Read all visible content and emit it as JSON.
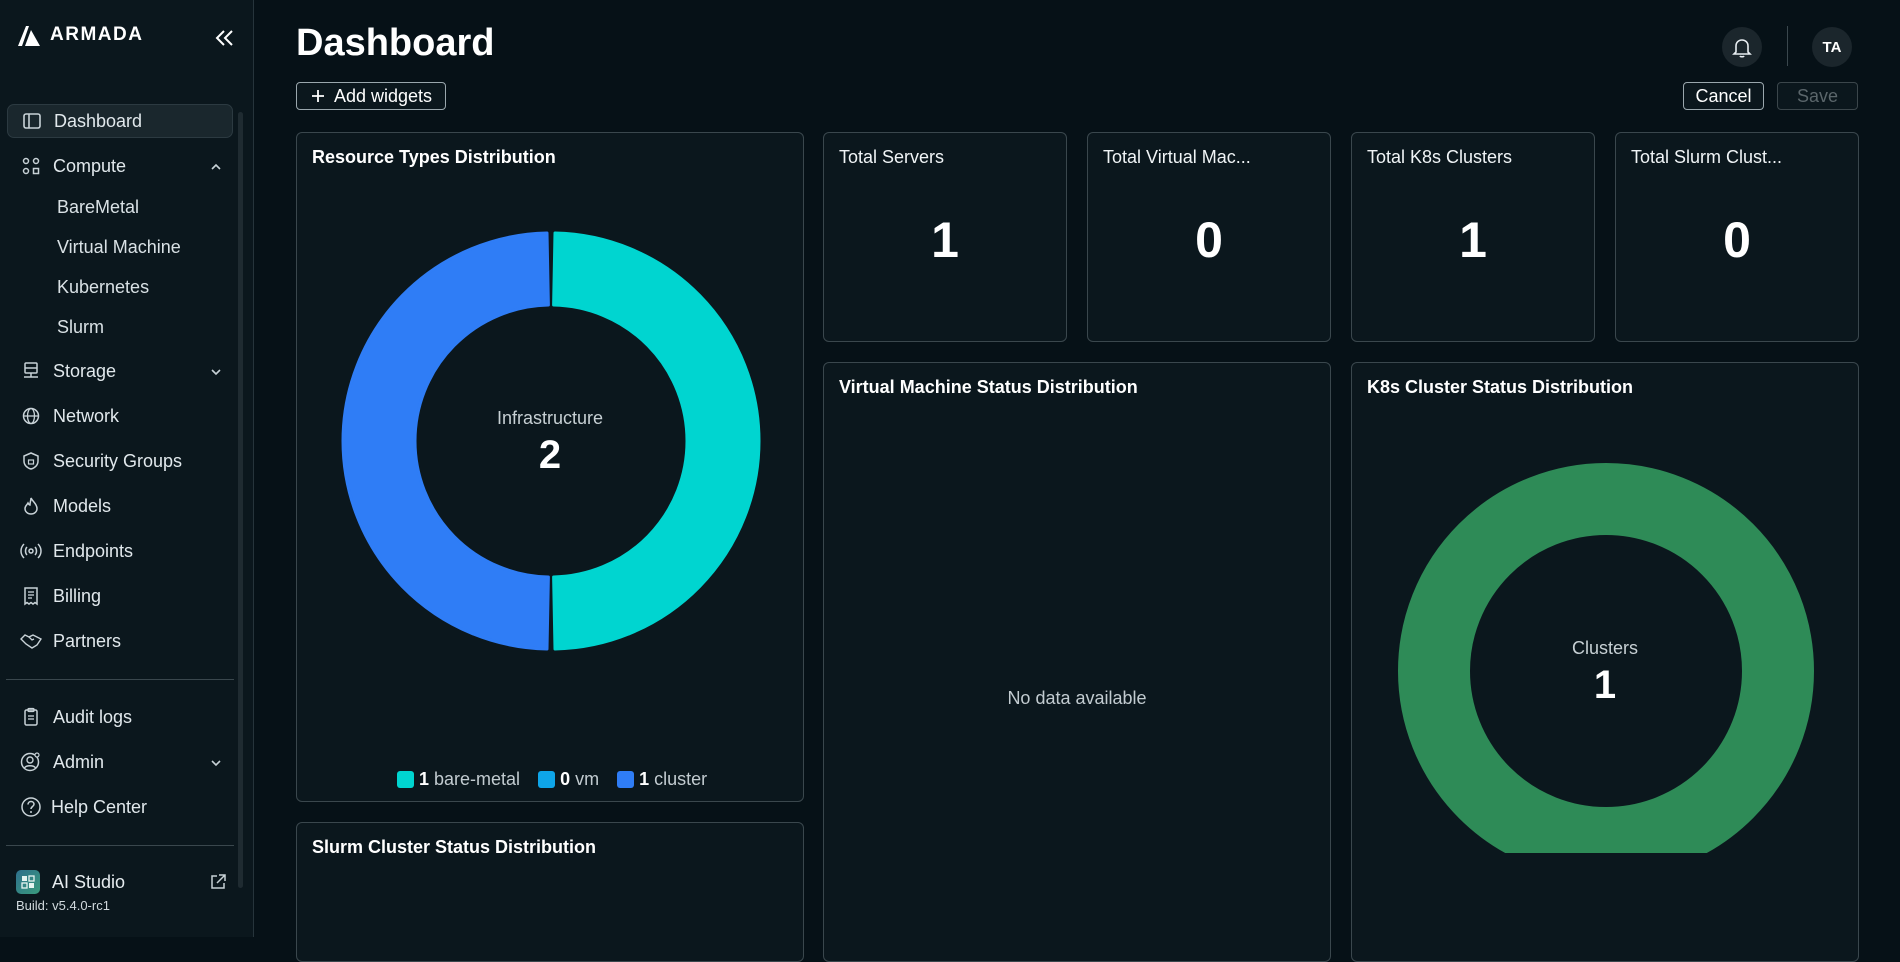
{
  "brand": {
    "name": "ARMADA"
  },
  "sidebar": {
    "items": [
      {
        "label": "Dashboard",
        "icon": "dashboard-icon"
      },
      {
        "label": "Compute",
        "icon": "compute-icon"
      },
      {
        "label": "Storage",
        "icon": "storage-icon"
      },
      {
        "label": "Network",
        "icon": "globe-icon"
      },
      {
        "label": "Security Groups",
        "icon": "shield-icon"
      },
      {
        "label": "Models",
        "icon": "flame-icon"
      },
      {
        "label": "Endpoints",
        "icon": "broadcast-icon"
      },
      {
        "label": "Billing",
        "icon": "receipt-icon"
      },
      {
        "label": "Partners",
        "icon": "handshake-icon"
      }
    ],
    "compute_sub": [
      "BareMetal",
      "Virtual Machine",
      "Kubernetes",
      "Slurm"
    ],
    "bottom_items": [
      {
        "label": "Audit logs",
        "icon": "clipboard-icon"
      },
      {
        "label": "Admin",
        "icon": "user-gear-icon"
      },
      {
        "label": "Help Center",
        "icon": "help-icon"
      }
    ],
    "ai_studio": "AI Studio",
    "build": "Build: v5.4.0-rc1"
  },
  "header": {
    "title": "Dashboard",
    "add_widgets": "Add widgets",
    "cancel": "Cancel",
    "save": "Save",
    "avatar_initials": "TA"
  },
  "cards": {
    "resource_types": {
      "title": "Resource Types Distribution",
      "center_label": "Infrastructure",
      "center_value": "2",
      "legend": [
        {
          "value": "1",
          "label": "bare-metal",
          "color": "#00d5d0"
        },
        {
          "value": "0",
          "label": "vm",
          "color": "#0ea5e9"
        },
        {
          "value": "1",
          "label": "cluster",
          "color": "#2f7df6"
        }
      ]
    },
    "total_servers": {
      "title": "Total Servers",
      "value": "1"
    },
    "total_vms": {
      "title": "Total Virtual Mac...",
      "value": "0"
    },
    "total_k8s": {
      "title": "Total K8s Clusters",
      "value": "1"
    },
    "total_slurm": {
      "title": "Total Slurm Clust...",
      "value": "0"
    },
    "vm_status": {
      "title": "Virtual Machine Status Distribution",
      "empty": "No data available"
    },
    "k8s_status": {
      "title": "K8s Cluster Status Distribution",
      "center_label": "Clusters",
      "center_value": "1",
      "color": "#2e8b57"
    },
    "slurm_status": {
      "title": "Slurm Cluster Status Distribution"
    }
  },
  "chart_data": [
    {
      "type": "pie",
      "title": "Resource Types Distribution",
      "categories": [
        "bare-metal",
        "vm",
        "cluster"
      ],
      "values": [
        1,
        0,
        1
      ],
      "colors": [
        "#00d5d0",
        "#0ea5e9",
        "#2f7df6"
      ]
    },
    {
      "type": "pie",
      "title": "K8s Cluster Status Distribution",
      "categories": [
        ""
      ],
      "values": [
        1
      ],
      "colors": [
        "#2e8b57"
      ]
    }
  ]
}
